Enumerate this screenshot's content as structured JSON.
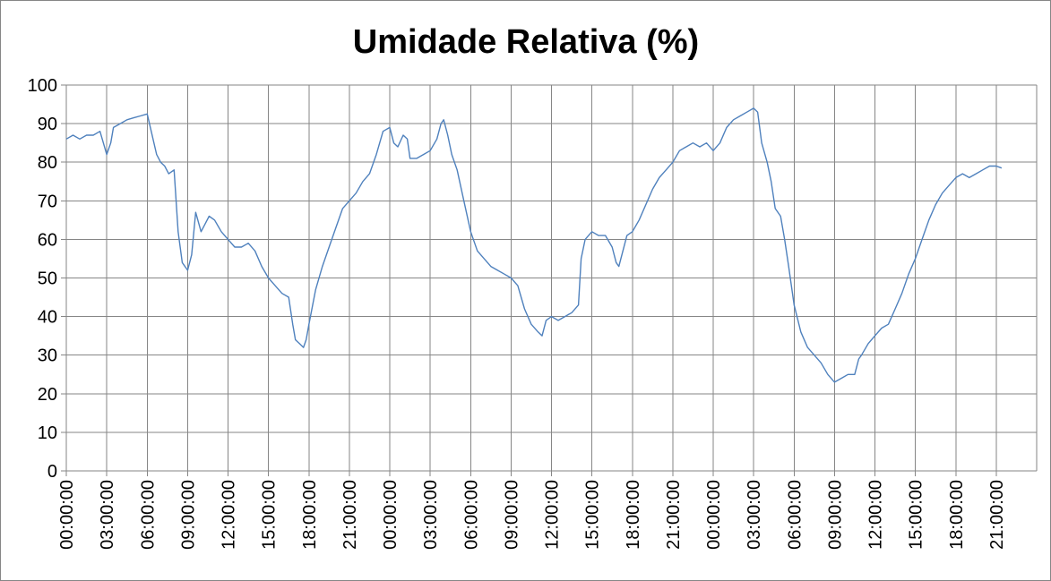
{
  "chart_data": {
    "type": "line",
    "title": "Umidade Relativa (%)",
    "xlabel": "",
    "ylabel": "",
    "ylim": [
      0,
      100
    ],
    "yticks": [
      0,
      10,
      20,
      30,
      40,
      50,
      60,
      70,
      80,
      90,
      100
    ],
    "grid": true,
    "legend": "none",
    "line_color": "#4F81BD",
    "x_unit": "hours elapsed (3 days of readings)",
    "xlim": [
      0,
      72
    ],
    "x_tick_labels": [
      "00:00:00",
      "03:00:00",
      "06:00:00",
      "09:00:00",
      "12:00:00",
      "15:00:00",
      "18:00:00",
      "21:00:00",
      "00:00:00",
      "03:00:00",
      "06:00:00",
      "09:00:00",
      "12:00:00",
      "15:00:00",
      "18:00:00",
      "21:00:00",
      "00:00:00",
      "03:00:00",
      "06:00:00",
      "09:00:00",
      "12:00:00",
      "15:00:00",
      "18:00:00",
      "21:00:00"
    ],
    "series": [
      {
        "points": [
          [
            0.0,
            86
          ],
          [
            0.5,
            87
          ],
          [
            1.0,
            86
          ],
          [
            1.5,
            87
          ],
          [
            2.0,
            87
          ],
          [
            2.5,
            88
          ],
          [
            3.0,
            82
          ],
          [
            3.3,
            85
          ],
          [
            3.5,
            89
          ],
          [
            4.0,
            90
          ],
          [
            4.5,
            91
          ],
          [
            5.0,
            91.5
          ],
          [
            5.5,
            92
          ],
          [
            6.0,
            92.5
          ],
          [
            6.3,
            88
          ],
          [
            6.7,
            82
          ],
          [
            7.0,
            80
          ],
          [
            7.3,
            79
          ],
          [
            7.6,
            77
          ],
          [
            8.0,
            78
          ],
          [
            8.3,
            62
          ],
          [
            8.6,
            54
          ],
          [
            9.0,
            52
          ],
          [
            9.3,
            56
          ],
          [
            9.6,
            67
          ],
          [
            10.0,
            62
          ],
          [
            10.3,
            64
          ],
          [
            10.6,
            66
          ],
          [
            11.0,
            65
          ],
          [
            11.5,
            62
          ],
          [
            12.0,
            60
          ],
          [
            12.5,
            58
          ],
          [
            13.0,
            58
          ],
          [
            13.5,
            59
          ],
          [
            14.0,
            57
          ],
          [
            14.5,
            53
          ],
          [
            15.0,
            50
          ],
          [
            15.5,
            48
          ],
          [
            16.0,
            46
          ],
          [
            16.5,
            45
          ],
          [
            16.8,
            38
          ],
          [
            17.0,
            34
          ],
          [
            17.3,
            33
          ],
          [
            17.6,
            32
          ],
          [
            17.8,
            34
          ],
          [
            18.0,
            38
          ],
          [
            18.5,
            47
          ],
          [
            19.0,
            53
          ],
          [
            19.5,
            58
          ],
          [
            20.0,
            63
          ],
          [
            20.5,
            68
          ],
          [
            21.0,
            70
          ],
          [
            21.5,
            72
          ],
          [
            22.0,
            75
          ],
          [
            22.5,
            77
          ],
          [
            23.0,
            82
          ],
          [
            23.5,
            88
          ],
          [
            24.0,
            89
          ],
          [
            24.3,
            85
          ],
          [
            24.6,
            84
          ],
          [
            25.0,
            87
          ],
          [
            25.3,
            86
          ],
          [
            25.5,
            81
          ],
          [
            26.0,
            81
          ],
          [
            26.5,
            82
          ],
          [
            27.0,
            83
          ],
          [
            27.5,
            86
          ],
          [
            27.8,
            90
          ],
          [
            28.0,
            91
          ],
          [
            28.3,
            87
          ],
          [
            28.6,
            82
          ],
          [
            29.0,
            78
          ],
          [
            29.5,
            70
          ],
          [
            30.0,
            62
          ],
          [
            30.5,
            57
          ],
          [
            31.0,
            55
          ],
          [
            31.5,
            53
          ],
          [
            32.0,
            52
          ],
          [
            32.5,
            51
          ],
          [
            33.0,
            50
          ],
          [
            33.5,
            48
          ],
          [
            34.0,
            42
          ],
          [
            34.5,
            38
          ],
          [
            35.0,
            36
          ],
          [
            35.3,
            35
          ],
          [
            35.6,
            39
          ],
          [
            36.0,
            40
          ],
          [
            36.5,
            39
          ],
          [
            37.0,
            40
          ],
          [
            37.5,
            41
          ],
          [
            38.0,
            43
          ],
          [
            38.2,
            55
          ],
          [
            38.5,
            60
          ],
          [
            39.0,
            62
          ],
          [
            39.5,
            61
          ],
          [
            40.0,
            61
          ],
          [
            40.5,
            58
          ],
          [
            40.8,
            54
          ],
          [
            41.0,
            53
          ],
          [
            41.3,
            57
          ],
          [
            41.6,
            61
          ],
          [
            42.0,
            62
          ],
          [
            42.5,
            65
          ],
          [
            43.0,
            69
          ],
          [
            43.5,
            73
          ],
          [
            44.0,
            76
          ],
          [
            44.5,
            78
          ],
          [
            45.0,
            80
          ],
          [
            45.5,
            83
          ],
          [
            46.0,
            84
          ],
          [
            46.5,
            85
          ],
          [
            47.0,
            84
          ],
          [
            47.5,
            85
          ],
          [
            48.0,
            83
          ],
          [
            48.5,
            85
          ],
          [
            49.0,
            89
          ],
          [
            49.5,
            91
          ],
          [
            50.0,
            92
          ],
          [
            50.5,
            93
          ],
          [
            51.0,
            94
          ],
          [
            51.3,
            93
          ],
          [
            51.6,
            85
          ],
          [
            52.0,
            80
          ],
          [
            52.3,
            75
          ],
          [
            52.6,
            68
          ],
          [
            53.0,
            66
          ],
          [
            53.3,
            60
          ],
          [
            53.6,
            53
          ],
          [
            54.0,
            43
          ],
          [
            54.5,
            36
          ],
          [
            55.0,
            32
          ],
          [
            55.5,
            30
          ],
          [
            56.0,
            28
          ],
          [
            56.5,
            25
          ],
          [
            57.0,
            23
          ],
          [
            57.5,
            24
          ],
          [
            58.0,
            25
          ],
          [
            58.5,
            25
          ],
          [
            58.8,
            29
          ],
          [
            59.0,
            30
          ],
          [
            59.5,
            33
          ],
          [
            60.0,
            35
          ],
          [
            60.5,
            37
          ],
          [
            61.0,
            38
          ],
          [
            61.5,
            42
          ],
          [
            62.0,
            46
          ],
          [
            62.5,
            51
          ],
          [
            63.0,
            55
          ],
          [
            63.5,
            60
          ],
          [
            64.0,
            65
          ],
          [
            64.5,
            69
          ],
          [
            65.0,
            72
          ],
          [
            65.5,
            74
          ],
          [
            66.0,
            76
          ],
          [
            66.5,
            77
          ],
          [
            67.0,
            76
          ],
          [
            67.5,
            77
          ],
          [
            68.0,
            78
          ],
          [
            68.5,
            79
          ],
          [
            69.0,
            79
          ],
          [
            69.4,
            78.5
          ]
        ]
      }
    ]
  }
}
